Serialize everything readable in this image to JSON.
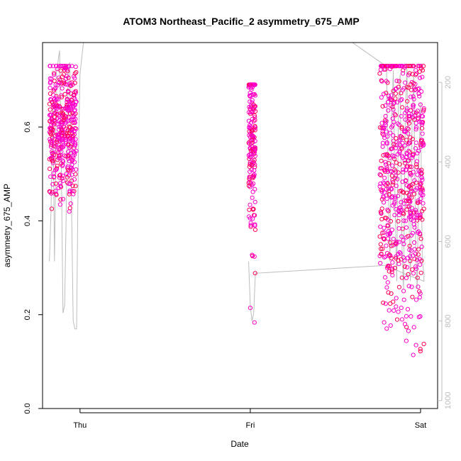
{
  "chart_data": {
    "type": "scatter",
    "title": "ATOM3 Northeast_Pacific_2 asymmetry_675_AMP",
    "xlabel": "Date",
    "ylabel": "asymmetry_675_AMP",
    "x_ticks": [
      "Thu",
      "Fri",
      "Sat"
    ],
    "xlim": [
      -0.22,
      2.1
    ],
    "ylim": [
      0,
      0.78
    ],
    "y_ticks": [
      0.0,
      0.2,
      0.4,
      0.6
    ],
    "y_tick_labels": [
      "0.0",
      "0.2",
      "0.4",
      "0.6"
    ],
    "y2_ticks": [
      200,
      400,
      600,
      800,
      1000
    ],
    "y2_tick_labels": [
      "200",
      "400",
      "600",
      "800",
      "1000"
    ],
    "y2lim": [
      1020,
      100
    ],
    "grid": false,
    "legend": "none",
    "series": [
      {
        "kind": "points",
        "color_range": [
          "#ff00cc",
          "#ff0055"
        ],
        "clusters": [
          {
            "x_start": -0.18,
            "x_end": -0.02,
            "y_min": 0.42,
            "y_max": 0.73,
            "y_center": 0.6,
            "count": 420
          },
          {
            "x_start": 0.99,
            "x_end": 1.03,
            "y_min": 0.15,
            "y_max": 0.69,
            "y_center": 0.58,
            "count": 200
          },
          {
            "x_start": 1.76,
            "x_end": 2.02,
            "y_min": 0.01,
            "y_max": 0.73,
            "y_center": 0.52,
            "count": 620
          }
        ]
      },
      {
        "kind": "depth-line",
        "color": "#bdbdbd",
        "axis": "right",
        "points": [
          [
            -0.18,
            650
          ],
          [
            -0.17,
            520
          ],
          [
            -0.16,
            250
          ],
          [
            -0.155,
            420
          ],
          [
            -0.15,
            650
          ],
          [
            -0.145,
            500
          ],
          [
            -0.14,
            180
          ],
          [
            -0.12,
            120
          ],
          [
            -0.11,
            400
          ],
          [
            -0.1,
            780
          ],
          [
            -0.09,
            760
          ],
          [
            -0.08,
            500
          ],
          [
            -0.07,
            180
          ],
          [
            -0.06,
            150
          ],
          [
            -0.05,
            500
          ],
          [
            -0.04,
            800
          ],
          [
            -0.03,
            820
          ],
          [
            -0.02,
            820
          ],
          [
            -0.01,
            400
          ],
          [
            0.0,
            180
          ],
          [
            0.02,
            100
          ],
          [
            1.0,
            100
          ],
          [
            1.6,
            100
          ],
          [
            1.8,
            160
          ],
          [
            1.81,
            450
          ],
          [
            1.82,
            650
          ],
          [
            1.83,
            300
          ],
          [
            1.84,
            170
          ],
          [
            1.85,
            500
          ],
          [
            1.86,
            700
          ],
          [
            1.87,
            250
          ],
          [
            1.88,
            180
          ],
          [
            1.89,
            600
          ],
          [
            1.9,
            720
          ],
          [
            1.91,
            300
          ],
          [
            1.92,
            160
          ],
          [
            1.93,
            500
          ],
          [
            1.94,
            700
          ],
          [
            1.95,
            300
          ],
          [
            1.96,
            180
          ],
          [
            1.97,
            600
          ],
          [
            1.98,
            720
          ],
          [
            1.99,
            400
          ],
          [
            2.0,
            250
          ],
          [
            2.01,
            650
          ],
          [
            2.02,
            680
          ],
          [
            2.02,
            700
          ],
          [
            1.9,
            680
          ],
          [
            1.8,
            660
          ],
          [
            1.03,
            680
          ],
          [
            1.02,
            780
          ],
          [
            1.01,
            800
          ],
          [
            1.0,
            760
          ],
          [
            0.99,
            650
          ]
        ]
      }
    ]
  }
}
